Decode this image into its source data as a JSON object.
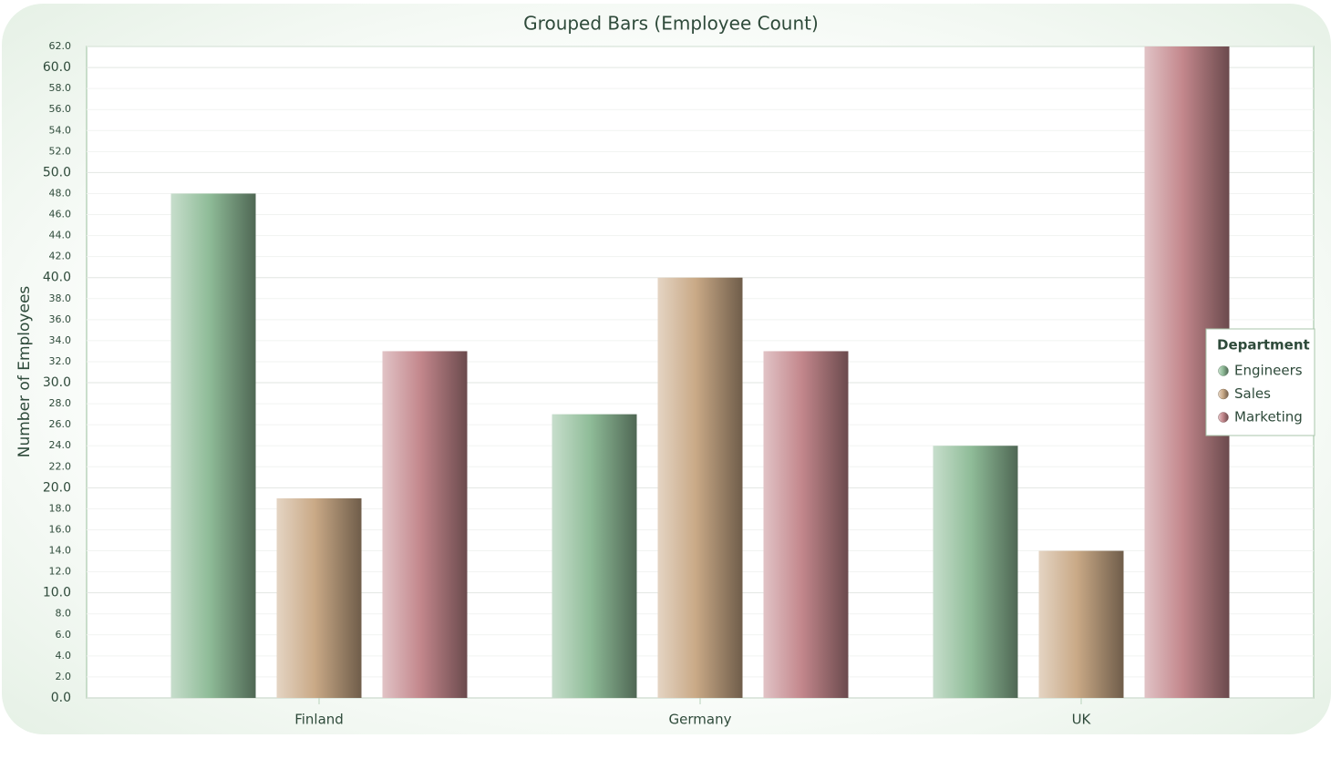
{
  "chart_data": {
    "type": "bar",
    "title": "Grouped Bars (Employee Count)",
    "ylabel": "Number of Employees",
    "categories": [
      "Finland",
      "Germany",
      "UK"
    ],
    "series": [
      {
        "name": "Engineers",
        "color": "#8fbc98",
        "values": [
          48,
          27,
          24
        ]
      },
      {
        "name": "Sales",
        "color": "#c9a986",
        "values": [
          19,
          40,
          14
        ]
      },
      {
        "name": "Marketing",
        "color": "#c3878c",
        "values": [
          33,
          33,
          62
        ]
      }
    ],
    "ylim": [
      0,
      62
    ],
    "yticks": [
      {
        "value": 0,
        "label": "0.0"
      },
      {
        "value": 2,
        "label": "2.0"
      },
      {
        "value": 4,
        "label": "4.0"
      },
      {
        "value": 6,
        "label": "6.0"
      },
      {
        "value": 8,
        "label": "8.0"
      },
      {
        "value": 10,
        "label": "10.0"
      },
      {
        "value": 12,
        "label": "12.0"
      },
      {
        "value": 14,
        "label": "14.0"
      },
      {
        "value": 16,
        "label": "16.0"
      },
      {
        "value": 18,
        "label": "18.0"
      },
      {
        "value": 20,
        "label": "20.0"
      },
      {
        "value": 22,
        "label": "22.0"
      },
      {
        "value": 24,
        "label": "24.0"
      },
      {
        "value": 26,
        "label": "26.0"
      },
      {
        "value": 28,
        "label": "28.0"
      },
      {
        "value": 30,
        "label": "30.0"
      },
      {
        "value": 32,
        "label": "32.0"
      },
      {
        "value": 34,
        "label": "34.0"
      },
      {
        "value": 36,
        "label": "36.0"
      },
      {
        "value": 38,
        "label": "38.0"
      },
      {
        "value": 40,
        "label": "40.0"
      },
      {
        "value": 42,
        "label": "42.0"
      },
      {
        "value": 44,
        "label": "44.0"
      },
      {
        "value": 46,
        "label": "46.0"
      },
      {
        "value": 48,
        "label": "48.0"
      },
      {
        "value": 50,
        "label": "50.0"
      },
      {
        "value": 52,
        "label": "52.0"
      },
      {
        "value": 54,
        "label": "54.0"
      },
      {
        "value": 56,
        "label": "56.0"
      },
      {
        "value": 58,
        "label": "58.0"
      },
      {
        "value": 60,
        "label": "60.0"
      },
      {
        "value": 62,
        "label": "62.0"
      }
    ],
    "grid": true,
    "legend": {
      "title": "Department",
      "position": "right"
    }
  }
}
